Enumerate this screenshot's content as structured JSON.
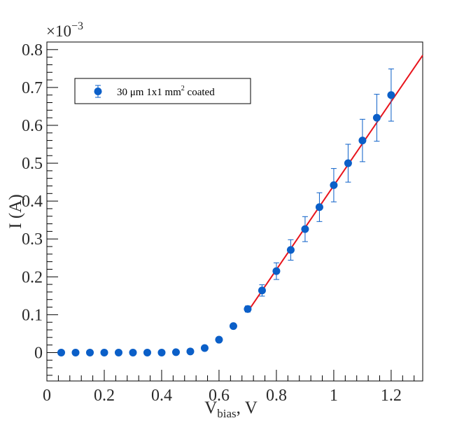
{
  "chart_data": {
    "type": "scatter",
    "xlabel": {
      "main": "V",
      "subscript": "bias",
      "suffix": ", V"
    },
    "ylabel": "I (A)",
    "y_multiplier": {
      "base": "×10",
      "exponent": "−3"
    },
    "xlim": [
      0,
      1.31
    ],
    "ylim": [
      -0.075,
      0.82
    ],
    "x_ticks": [
      0,
      0.2,
      0.4,
      0.6,
      0.8,
      1,
      1.2
    ],
    "x_tick_labels": [
      "0",
      "0.2",
      "0.4",
      "0.6",
      "0.8",
      "1",
      "1.2"
    ],
    "y_ticks": [
      0,
      0.1,
      0.2,
      0.3,
      0.4,
      0.5,
      0.6,
      0.7,
      0.8
    ],
    "y_tick_labels": [
      "0",
      "0.1",
      "0.2",
      "0.3",
      "0.4",
      "0.5",
      "0.6",
      "0.7",
      "0.8"
    ],
    "grid": false,
    "legend": {
      "position": "top-left",
      "prefix": "30 μm 1x1 mm",
      "superscript": "2",
      "suffix": " coated"
    },
    "series": [
      {
        "name": "30 μm 1x1 mm² coated",
        "color": "#0b5fc8",
        "x": [
          0.05,
          0.1,
          0.15,
          0.2,
          0.25,
          0.3,
          0.35,
          0.4,
          0.45,
          0.5,
          0.55,
          0.6,
          0.65,
          0.7,
          0.75,
          0.8,
          0.85,
          0.9,
          0.95,
          1.0,
          1.05,
          1.1,
          1.15,
          1.2
        ],
        "y": [
          0,
          0,
          0,
          0,
          0,
          0,
          0,
          0,
          0.001,
          0.003,
          0.012,
          0.034,
          0.07,
          0.115,
          0.164,
          0.215,
          0.271,
          0.326,
          0.384,
          0.442,
          0.5,
          0.56,
          0.62,
          0.68
        ],
        "yerr": [
          0,
          0,
          0,
          0,
          0,
          0,
          0,
          0,
          0,
          0,
          0,
          0,
          0,
          0.008,
          0.015,
          0.022,
          0.027,
          0.033,
          0.038,
          0.044,
          0.05,
          0.056,
          0.062,
          0.069
        ]
      }
    ],
    "fit": {
      "color": "#e8141c",
      "x": [
        0.7,
        1.31
      ],
      "y": [
        0.108,
        0.785
      ]
    }
  }
}
